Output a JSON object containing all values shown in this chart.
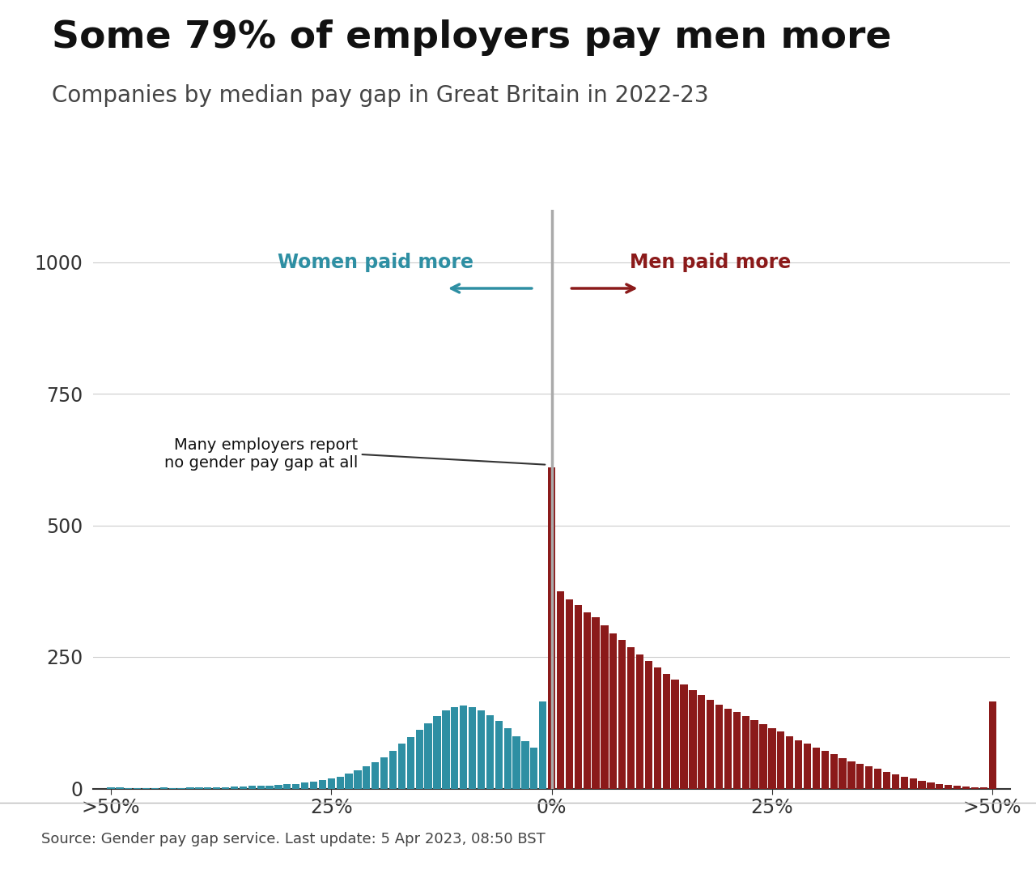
{
  "title": "Some 79% of employers pay men more",
  "subtitle": "Companies by median pay gap in Great Britain in 2022-23",
  "source": "Source: Gender pay gap service. Last update: 5 Apr 2023, 08:50 BST",
  "title_fontsize": 34,
  "subtitle_fontsize": 20,
  "background_color": "#ffffff",
  "women_color": "#2E8FA3",
  "men_color": "#8B1A1A",
  "zero_line_color": "#aaaaaa",
  "annotation_text": "Many employers report\nno gender pay gap at all",
  "women_label": "Women paid more",
  "men_label": "Men paid more",
  "ylim_max": 1100,
  "yticks": [
    0,
    250,
    500,
    750,
    1000
  ],
  "xtick_positions": [
    -50,
    -25,
    0,
    25,
    50
  ],
  "xtick_labels": [
    ">50%",
    "25%",
    "0%",
    "25%",
    ">50%"
  ],
  "bar_centers": [
    -50,
    -49,
    -48,
    -47,
    -46,
    -45,
    -44,
    -43,
    -42,
    -41,
    -40,
    -39,
    -38,
    -37,
    -36,
    -35,
    -34,
    -33,
    -32,
    -31,
    -30,
    -29,
    -28,
    -27,
    -26,
    -25,
    -24,
    -23,
    -22,
    -21,
    -20,
    -19,
    -18,
    -17,
    -16,
    -15,
    -14,
    -13,
    -12,
    -11,
    -10,
    -9,
    -8,
    -7,
    -6,
    -5,
    -4,
    -3,
    -2,
    -1,
    0,
    1,
    2,
    3,
    4,
    5,
    6,
    7,
    8,
    9,
    10,
    11,
    12,
    13,
    14,
    15,
    16,
    17,
    18,
    19,
    20,
    21,
    22,
    23,
    24,
    25,
    26,
    27,
    28,
    29,
    30,
    31,
    32,
    33,
    34,
    35,
    36,
    37,
    38,
    39,
    40,
    41,
    42,
    43,
    44,
    45,
    46,
    47,
    48,
    49,
    50
  ],
  "bar_heights": [
    3,
    2,
    1,
    1,
    1,
    1,
    2,
    1,
    1,
    2,
    2,
    2,
    3,
    3,
    4,
    4,
    5,
    5,
    6,
    7,
    8,
    9,
    11,
    13,
    16,
    19,
    23,
    28,
    34,
    42,
    50,
    60,
    72,
    85,
    98,
    112,
    124,
    138,
    148,
    155,
    158,
    155,
    148,
    140,
    128,
    115,
    100,
    90,
    78,
    165,
    610,
    375,
    360,
    348,
    335,
    325,
    310,
    295,
    282,
    268,
    255,
    242,
    230,
    218,
    207,
    197,
    187,
    178,
    168,
    160,
    152,
    145,
    137,
    130,
    122,
    115,
    108,
    100,
    92,
    85,
    78,
    72,
    65,
    58,
    52,
    47,
    42,
    37,
    32,
    27,
    23,
    19,
    15,
    12,
    9,
    7,
    5,
    4,
    3,
    3,
    165
  ]
}
